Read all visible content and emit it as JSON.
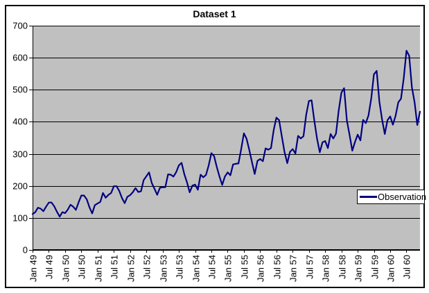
{
  "chart_data": {
    "type": "line",
    "title": "Dataset 1",
    "x_tick_labels": [
      "Jan 49",
      "Jul 49",
      "Jan 50",
      "Jul 50",
      "Jan 51",
      "Jul 51",
      "Jan 52",
      "Jul 52",
      "Jan 53",
      "Jul 53",
      "Jan 54",
      "Jul 54",
      "Jan 55",
      "Jul 55",
      "Jan 56",
      "Jul 56",
      "Jan 57",
      "Jul 57",
      "Jan 58",
      "Jul 58",
      "Jan 59",
      "Jul 59",
      "Jan 60",
      "Jul 60"
    ],
    "x_label_every": 6,
    "y_ticks": [
      0,
      100,
      200,
      300,
      400,
      500,
      600,
      700
    ],
    "ylim": [
      0,
      700
    ],
    "gridlines": true,
    "legend_position": "right-middle",
    "plot_bg": "#c0c0c0",
    "grid_color": "#000000",
    "axis_color": "#000000",
    "series": [
      {
        "name": "Observation",
        "color": "#000080",
        "values": [
          112,
          118,
          132,
          129,
          121,
          135,
          148,
          148,
          136,
          119,
          104,
          118,
          115,
          126,
          141,
          135,
          125,
          149,
          170,
          170,
          158,
          133,
          114,
          140,
          145,
          150,
          178,
          163,
          172,
          178,
          199,
          199,
          184,
          162,
          146,
          166,
          171,
          180,
          193,
          181,
          183,
          218,
          230,
          242,
          209,
          191,
          172,
          194,
          196,
          196,
          236,
          235,
          229,
          243,
          264,
          272,
          237,
          211,
          180,
          201,
          204,
          188,
          235,
          227,
          234,
          264,
          302,
          293,
          259,
          229,
          203,
          229,
          242,
          233,
          267,
          269,
          270,
          315,
          364,
          347,
          312,
          274,
          237,
          278,
          284,
          277,
          317,
          313,
          318,
          374,
          413,
          405,
          355,
          306,
          271,
          306,
          315,
          301,
          356,
          348,
          355,
          422,
          465,
          467,
          404,
          347,
          305,
          336,
          340,
          318,
          362,
          348,
          363,
          435,
          491,
          505,
          404,
          359,
          310,
          337,
          360,
          342,
          406,
          396,
          420,
          472,
          548,
          559,
          463,
          407,
          362,
          405,
          417,
          391,
          419,
          461,
          472,
          535,
          622,
          606,
          508,
          461,
          390,
          432
        ]
      }
    ]
  }
}
